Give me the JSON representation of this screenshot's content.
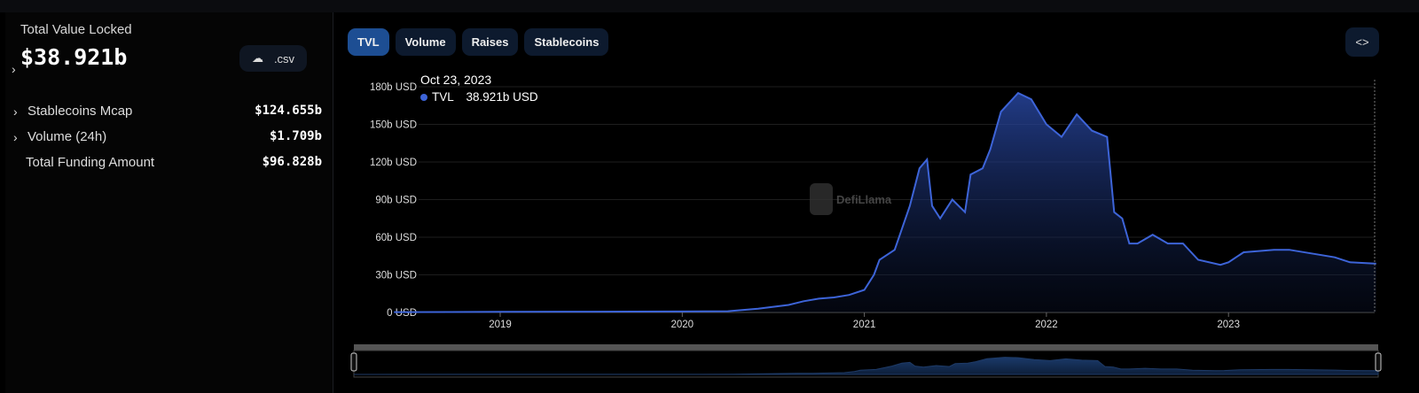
{
  "summary": {
    "tvl_label": "Total Value Locked",
    "tvl_value": "$38.921b",
    "csv_label": ".csv",
    "rows": [
      {
        "label": "Stablecoins Mcap",
        "value": "$124.655b",
        "expandable": true
      },
      {
        "label": "Volume (24h)",
        "value": "$1.709b",
        "expandable": true
      },
      {
        "label": "Total Funding Amount",
        "value": "$96.828b",
        "expandable": false
      }
    ]
  },
  "tabs": [
    {
      "label": "TVL",
      "active": true
    },
    {
      "label": "Volume"
    },
    {
      "label": "Raises"
    },
    {
      "label": "Stablecoins"
    }
  ],
  "embed_label": "<>",
  "tooltip": {
    "date": "Oct 23, 2023",
    "series": "TVL",
    "value": "38.921b USD"
  },
  "watermark": "DefiLlama",
  "colors": {
    "line": "#3d64d8",
    "active_tab": "#1d4e93",
    "tab": "#0d1a2e"
  },
  "chart_data": {
    "type": "area",
    "yticks": [
      "0 USD",
      "30b USD",
      "60b USD",
      "90b USD",
      "120b USD",
      "150b USD",
      "180b USD"
    ],
    "ytick_values": [
      0,
      30,
      60,
      90,
      120,
      150,
      180
    ],
    "xticks": [
      "2019",
      "2020",
      "2021",
      "2022",
      "2023"
    ],
    "ylim": [
      0,
      180
    ],
    "xlim": [
      "2018-06",
      "2023-10-23"
    ],
    "grid": true,
    "series": [
      {
        "name": "TVL",
        "unit": "b USD",
        "points": [
          [
            "2018-06",
            0.3
          ],
          [
            "2019-01",
            0.5
          ],
          [
            "2019-07",
            0.6
          ],
          [
            "2020-01",
            0.8
          ],
          [
            "2020-04",
            1
          ],
          [
            "2020-06",
            3
          ],
          [
            "2020-08",
            6
          ],
          [
            "2020-09",
            9
          ],
          [
            "2020-10",
            11
          ],
          [
            "2020-11",
            12
          ],
          [
            "2020-12",
            14
          ],
          [
            "2021-01",
            18
          ],
          [
            "2021-01-20",
            30
          ],
          [
            "2021-02",
            42
          ],
          [
            "2021-03",
            50
          ],
          [
            "2021-04",
            85
          ],
          [
            "2021-04-20",
            115
          ],
          [
            "2021-05-05",
            122
          ],
          [
            "2021-05-15",
            85
          ],
          [
            "2021-06",
            75
          ],
          [
            "2021-06-25",
            90
          ],
          [
            "2021-07-20",
            80
          ],
          [
            "2021-08",
            110
          ],
          [
            "2021-08-25",
            115
          ],
          [
            "2021-09-10",
            130
          ],
          [
            "2021-10",
            160
          ],
          [
            "2021-11-05",
            175
          ],
          [
            "2021-12",
            170
          ],
          [
            "2022-01",
            150
          ],
          [
            "2022-02",
            140
          ],
          [
            "2022-03",
            158
          ],
          [
            "2022-04",
            145
          ],
          [
            "2022-05",
            140
          ],
          [
            "2022-05-15",
            80
          ],
          [
            "2022-06",
            75
          ],
          [
            "2022-06-15",
            55
          ],
          [
            "2022-07",
            55
          ],
          [
            "2022-08",
            62
          ],
          [
            "2022-09",
            55
          ],
          [
            "2022-10",
            55
          ],
          [
            "2022-11",
            42
          ],
          [
            "2022-12-15",
            38
          ],
          [
            "2023-01",
            40
          ],
          [
            "2023-02",
            48
          ],
          [
            "2023-04",
            50
          ],
          [
            "2023-05",
            50
          ],
          [
            "2023-07",
            46
          ],
          [
            "2023-08",
            44
          ],
          [
            "2023-09",
            40
          ],
          [
            "2023-10-23",
            38.921
          ]
        ]
      }
    ]
  }
}
